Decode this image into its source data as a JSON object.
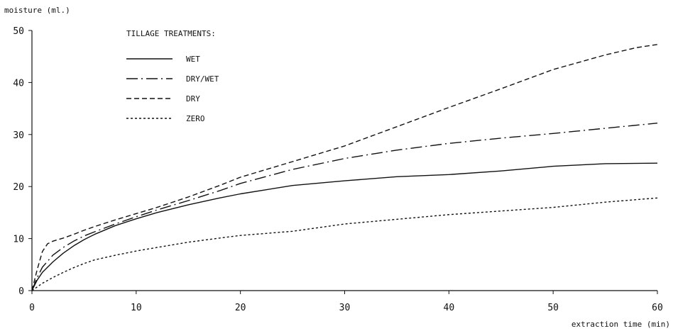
{
  "chart_data": {
    "type": "line",
    "ylabel": "moisture (ml.)",
    "xlabel": "extraction time (min)",
    "xlim": [
      0,
      60
    ],
    "ylim": [
      0,
      50
    ],
    "x_ticks": [
      0,
      10,
      20,
      30,
      40,
      50,
      60
    ],
    "y_ticks": [
      0,
      10,
      20,
      30,
      40,
      50
    ],
    "grid": false,
    "legend": {
      "title": "TILLAGE TREATMENTS:",
      "placement": "top-left"
    },
    "series": [
      {
        "name": "WET",
        "style": "solid",
        "points": [
          [
            0,
            0
          ],
          [
            0.5,
            2
          ],
          [
            1,
            3.5
          ],
          [
            2,
            5.5
          ],
          [
            3,
            7.2
          ],
          [
            4,
            8.6
          ],
          [
            5,
            9.8
          ],
          [
            6,
            10.8
          ],
          [
            8,
            12.5
          ],
          [
            10,
            13.8
          ],
          [
            12,
            15.0
          ],
          [
            15,
            16.5
          ],
          [
            18,
            17.8
          ],
          [
            20,
            18.6
          ],
          [
            25,
            20.2
          ],
          [
            30,
            21.1
          ],
          [
            35,
            21.9
          ],
          [
            40,
            22.3
          ],
          [
            45,
            23.0
          ],
          [
            50,
            23.9
          ],
          [
            55,
            24.4
          ],
          [
            60,
            24.5
          ]
        ]
      },
      {
        "name": "DRY/WET",
        "style": "dash-dot",
        "points": [
          [
            0,
            0
          ],
          [
            0.5,
            2.5
          ],
          [
            1,
            4.5
          ],
          [
            2,
            6.8
          ],
          [
            3,
            8.3
          ],
          [
            4,
            9.5
          ],
          [
            5,
            10.5
          ],
          [
            6,
            11.3
          ],
          [
            8,
            12.8
          ],
          [
            10,
            14.2
          ],
          [
            12,
            15.5
          ],
          [
            15,
            17.3
          ],
          [
            18,
            19.2
          ],
          [
            20,
            20.6
          ],
          [
            25,
            23.3
          ],
          [
            30,
            25.4
          ],
          [
            35,
            27.0
          ],
          [
            40,
            28.3
          ],
          [
            45,
            29.3
          ],
          [
            50,
            30.2
          ],
          [
            55,
            31.2
          ],
          [
            60,
            32.2
          ]
        ]
      },
      {
        "name": "DRY",
        "style": "dash",
        "points": [
          [
            0,
            0
          ],
          [
            0.5,
            4
          ],
          [
            1,
            7.5
          ],
          [
            1.5,
            9
          ],
          [
            2,
            9.5
          ],
          [
            3,
            10.1
          ],
          [
            4,
            10.8
          ],
          [
            5,
            11.6
          ],
          [
            6,
            12.3
          ],
          [
            8,
            13.6
          ],
          [
            10,
            14.8
          ],
          [
            12,
            16.0
          ],
          [
            15,
            18.0
          ],
          [
            18,
            20.2
          ],
          [
            20,
            21.8
          ],
          [
            25,
            24.8
          ],
          [
            30,
            27.8
          ],
          [
            35,
            31.5
          ],
          [
            40,
            35.2
          ],
          [
            45,
            38.8
          ],
          [
            50,
            42.5
          ],
          [
            55,
            45.3
          ],
          [
            58,
            46.7
          ],
          [
            60,
            47.3
          ]
        ]
      },
      {
        "name": "ZERO",
        "style": "dot",
        "points": [
          [
            0,
            0
          ],
          [
            1,
            1.4
          ],
          [
            2,
            2.5
          ],
          [
            3,
            3.5
          ],
          [
            4,
            4.4
          ],
          [
            5,
            5.2
          ],
          [
            6,
            5.9
          ],
          [
            8,
            6.8
          ],
          [
            10,
            7.6
          ],
          [
            12,
            8.3
          ],
          [
            15,
            9.3
          ],
          [
            18,
            10.1
          ],
          [
            20,
            10.6
          ],
          [
            25,
            11.4
          ],
          [
            30,
            12.8
          ],
          [
            35,
            13.7
          ],
          [
            40,
            14.6
          ],
          [
            45,
            15.3
          ],
          [
            50,
            16.0
          ],
          [
            55,
            17.0
          ],
          [
            60,
            17.8
          ]
        ]
      }
    ]
  }
}
